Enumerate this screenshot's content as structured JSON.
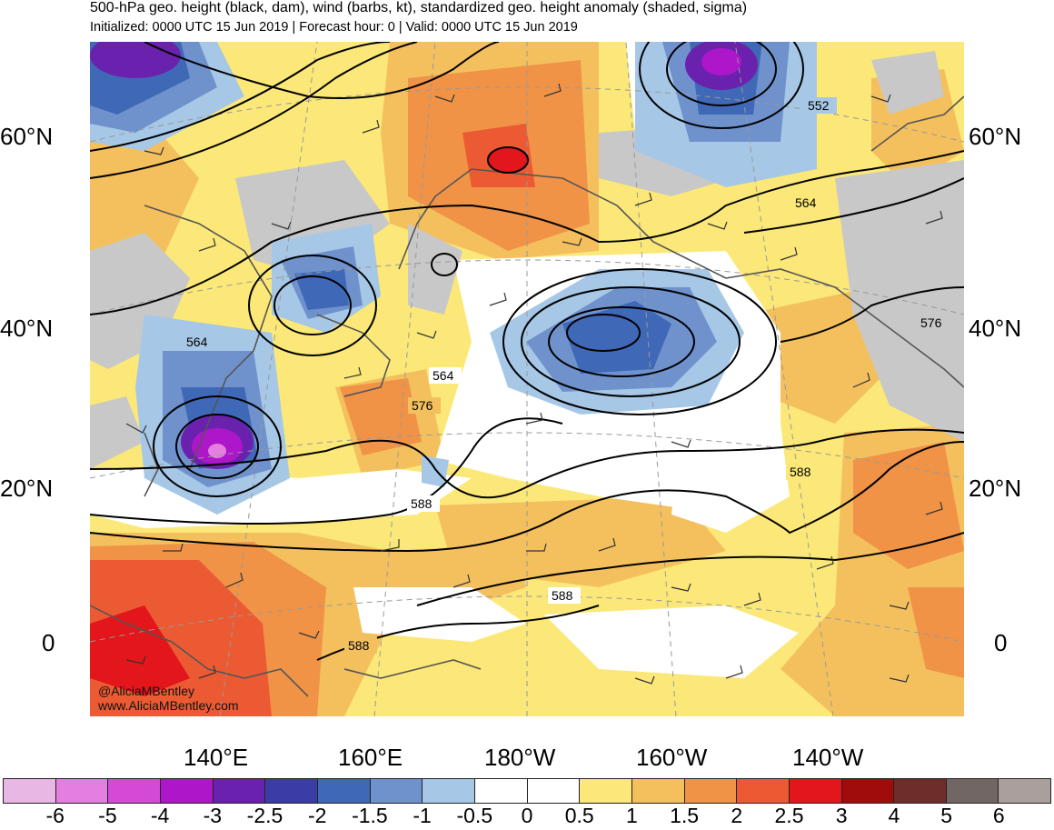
{
  "header": {
    "title": "500-hPa geo. height (black, dam), wind (barbs, kt), standardized geo. height anomaly (shaded, sigma)",
    "subtitle": "Initialized: 0000 UTC 15 Jun 2019 | Forecast hour: 0 | Valid: 0000 UTC 15 Jun 2019"
  },
  "map": {
    "lat_labels_left": [
      "60°N",
      "40°N",
      "20°N",
      "0"
    ],
    "lat_labels_right": [
      "60°N",
      "40°N",
      "20°N",
      "0"
    ],
    "lon_labels": [
      "140°E",
      "160°E",
      "180°W",
      "160°W",
      "140°W"
    ],
    "contour_labels": [
      "552",
      "564",
      "576",
      "564",
      "564",
      "576",
      "588",
      "588",
      "588",
      "588"
    ],
    "credit": [
      "@AliciaMBentley",
      "www.AliciaMBentley.com"
    ],
    "colors": {
      "ocean_neutral": "#ffffff",
      "land_outline": "#555555",
      "contour": "#000000",
      "graticule": "#999999"
    }
  },
  "colorbar": {
    "ticks": [
      "-6",
      "-5",
      "-4",
      "-3",
      "-2.5",
      "-2",
      "-1.5",
      "-1",
      "-0.5",
      "0",
      "0.5",
      "1",
      "1.5",
      "2",
      "2.5",
      "3",
      "4",
      "5",
      "6"
    ],
    "colors": [
      "#e9b7e4",
      "#e57fdf",
      "#d44ad6",
      "#ad16c9",
      "#6a22ae",
      "#3c3ca6",
      "#3f68b7",
      "#6f92cd",
      "#a6c7e6",
      "#ffffff",
      "#ffffff",
      "#fbe878",
      "#f4c05e",
      "#f09347",
      "#ec5a33",
      "#e2161b",
      "#a00c0c",
      "#6e2c2a",
      "#726664",
      "#aa9f9d"
    ]
  }
}
